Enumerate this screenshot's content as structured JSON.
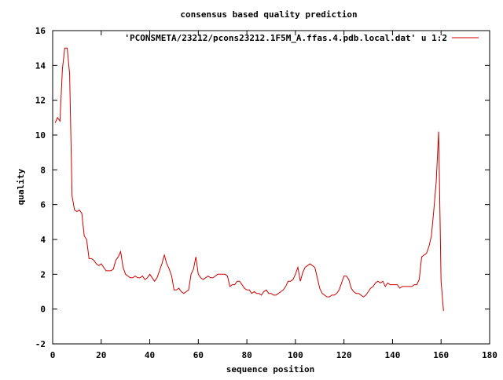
{
  "chart_data": {
    "type": "line",
    "title": "consensus based quality prediction",
    "xlabel": "sequence position",
    "ylabel": "quality",
    "xlim": [
      0,
      180
    ],
    "ylim": [
      -2,
      16
    ],
    "xticks": [
      0,
      20,
      40,
      60,
      80,
      100,
      120,
      140,
      160,
      180
    ],
    "yticks": [
      -2,
      0,
      2,
      4,
      6,
      8,
      10,
      12,
      14,
      16
    ],
    "legend_position": "top-right",
    "grid": false,
    "series": [
      {
        "name": "'PCONSMETA/23212/pcons23212.1F5M_A.ffas.4.pdb.local.dat' u 1:2",
        "color": "#cc0000",
        "x": [
          1,
          2,
          3,
          4,
          5,
          6,
          7,
          8,
          9,
          10,
          11,
          12,
          13,
          14,
          15,
          16,
          17,
          18,
          19,
          20,
          21,
          22,
          23,
          24,
          25,
          26,
          27,
          28,
          29,
          30,
          31,
          32,
          33,
          34,
          35,
          36,
          37,
          38,
          39,
          40,
          41,
          42,
          43,
          44,
          45,
          46,
          47,
          48,
          49,
          50,
          51,
          52,
          53,
          54,
          55,
          56,
          57,
          58,
          59,
          60,
          61,
          62,
          63,
          64,
          65,
          66,
          67,
          68,
          69,
          70,
          71,
          72,
          73,
          74,
          75,
          76,
          77,
          78,
          79,
          80,
          81,
          82,
          83,
          84,
          85,
          86,
          87,
          88,
          89,
          90,
          91,
          92,
          93,
          94,
          95,
          96,
          97,
          98,
          99,
          100,
          101,
          102,
          103,
          104,
          105,
          106,
          107,
          108,
          109,
          110,
          111,
          112,
          113,
          114,
          115,
          116,
          117,
          118,
          119,
          120,
          121,
          122,
          123,
          124,
          125,
          126,
          127,
          128,
          129,
          130,
          131,
          132,
          133,
          134,
          135,
          136,
          137,
          138,
          139,
          140,
          141,
          142,
          143,
          144,
          145,
          146,
          147,
          148,
          149,
          150,
          151,
          152,
          153,
          154,
          155,
          156,
          157,
          158,
          159,
          160,
          161
        ],
        "y": [
          10.7,
          11.0,
          10.8,
          13.8,
          15.0,
          15.0,
          13.5,
          6.5,
          5.7,
          5.6,
          5.7,
          5.5,
          4.2,
          4.0,
          2.9,
          2.9,
          2.8,
          2.6,
          2.5,
          2.6,
          2.4,
          2.2,
          2.2,
          2.2,
          2.3,
          2.8,
          3.0,
          3.3,
          2.4,
          2.0,
          1.9,
          1.8,
          1.8,
          1.9,
          1.8,
          1.8,
          1.9,
          1.7,
          1.8,
          2.0,
          1.8,
          1.6,
          1.8,
          2.2,
          2.6,
          3.1,
          2.6,
          2.3,
          1.9,
          1.1,
          1.1,
          1.2,
          1.0,
          0.9,
          1.0,
          1.1,
          2.0,
          2.3,
          3.0,
          2.0,
          1.8,
          1.7,
          1.8,
          1.9,
          1.8,
          1.8,
          1.9,
          2.0,
          2.0,
          2.0,
          2.0,
          1.9,
          1.3,
          1.4,
          1.4,
          1.6,
          1.6,
          1.4,
          1.2,
          1.1,
          1.1,
          0.9,
          1.0,
          0.9,
          0.9,
          0.8,
          1.0,
          1.1,
          0.9,
          0.9,
          0.8,
          0.8,
          0.9,
          1.0,
          1.1,
          1.3,
          1.6,
          1.6,
          1.7,
          2.0,
          2.4,
          1.6,
          2.1,
          2.4,
          2.5,
          2.6,
          2.5,
          2.4,
          1.8,
          1.2,
          0.9,
          0.8,
          0.7,
          0.7,
          0.8,
          0.8,
          0.9,
          1.1,
          1.5,
          1.9,
          1.9,
          1.7,
          1.2,
          1.0,
          0.9,
          0.9,
          0.8,
          0.7,
          0.8,
          1.0,
          1.2,
          1.3,
          1.5,
          1.6,
          1.5,
          1.6,
          1.3,
          1.5,
          1.4,
          1.4,
          1.4,
          1.4,
          1.2,
          1.3,
          1.3,
          1.3,
          1.3,
          1.3,
          1.4,
          1.4,
          1.7,
          3.0,
          3.1,
          3.2,
          3.6,
          4.2,
          5.7,
          7.3,
          10.2,
          1.6,
          -0.1
        ]
      }
    ]
  }
}
